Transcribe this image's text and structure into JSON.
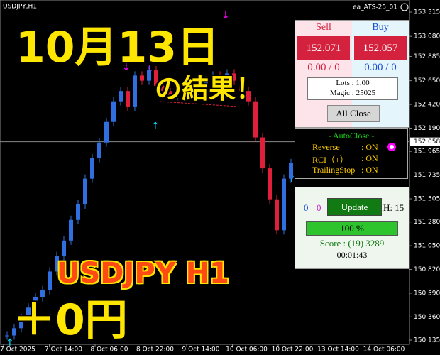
{
  "header": {
    "symbol": "USDJPY,H1",
    "ea_name": "ea_ATS-25_01"
  },
  "overlay": {
    "date": "10月13日",
    "result": "の結果！",
    "pair": "USDJPY H1",
    "profit": "＋0円"
  },
  "chart_data": {
    "type": "candles",
    "values": [
      150.18,
      150.25,
      150.35,
      150.45,
      150.55,
      150.62,
      150.8,
      150.95,
      151.1,
      151.3,
      151.45,
      151.7,
      151.9,
      152.05,
      152.25,
      152.45,
      152.55,
      152.4,
      152.7,
      152.65,
      152.75,
      152.6,
      152.55,
      152.5,
      152.58,
      152.62,
      152.55,
      152.6,
      152.65,
      152.7,
      152.68,
      152.72,
      152.65,
      152.55,
      152.45,
      152.1,
      151.8,
      151.5,
      151.2,
      151.7,
      151.85
    ],
    "up_color": "#2f6fe0",
    "down_color": "#e0203a",
    "ylim": [
      150.094,
      153.432
    ],
    "yticks": [
      153.315,
      {
        "value": 153.08,
        "label": "153.080"
      },
      152.885,
      {
        "value": 152.65,
        "label": "152.650"
      },
      {
        "value": 152.42,
        "label": "152.420"
      },
      {
        "value": 152.19,
        "label": "152.190"
      },
      151.965,
      151.735,
      151.505,
      {
        "value": 151.28,
        "label": "151.280"
      },
      {
        "value": 151.05,
        "label": "151.050"
      },
      {
        "value": 150.82,
        "label": "150.820"
      },
      {
        "value": 150.59,
        "label": "150.590"
      },
      {
        "value": 150.36,
        "label": "150.360"
      },
      150.135
    ],
    "current_price": 152.058,
    "time_labels": [
      "7 Oct 2025",
      "7 Oct 14:00",
      "8 Oct 06:00",
      "8 Oct 22:00",
      "9 Oct 14:00",
      "10 Oct 06:00",
      "10 Oct 22:00",
      "13 Oct 14:00",
      "14 Oct 06:00"
    ]
  },
  "trade_panel": {
    "sell_label": "Sell",
    "buy_label": "Buy",
    "sell_price": "152.071",
    "buy_price": "152.057",
    "sell_pl": "0.00 / 0",
    "buy_pl": "0.00 / 0",
    "lots": "Lots : 1.00",
    "magic": "Magic : 25025",
    "close_button": "All Close"
  },
  "auto_close": {
    "title": "- AutoClose -",
    "rows": [
      [
        "Reverse",
        ": ON"
      ],
      [
        "RCI（+）",
        ": ON"
      ],
      [
        "TrailingStop",
        ": ON"
      ]
    ]
  },
  "status_panel": {
    "count_a": "0",
    "count_b": "0",
    "update_button": "Update",
    "hours": "H: 15",
    "progress": "100 %",
    "score": "Score : (19) 3289",
    "timer": "00:01:43"
  }
}
